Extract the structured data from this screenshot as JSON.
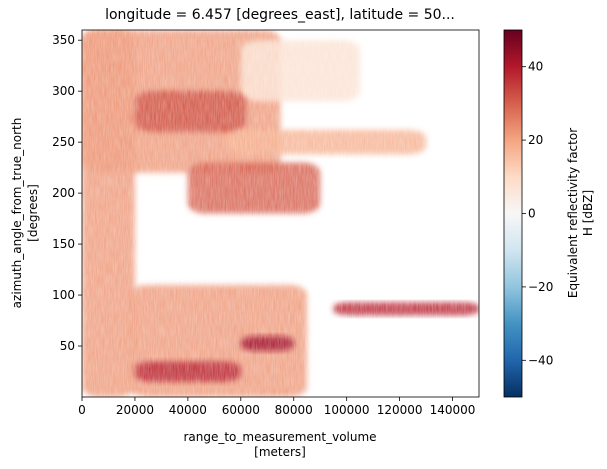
{
  "chart_data": {
    "type": "heatmap",
    "title": "longitude = 6.457 [degrees_east], latitude = 50...",
    "xlabel_lines": [
      "range_to_measurement_volume",
      "[meters]"
    ],
    "ylabel_lines": [
      "azimuth_angle_from_true_north",
      "[degrees]"
    ],
    "xlim": [
      0,
      150000
    ],
    "ylim": [
      0,
      360
    ],
    "x_ticks": [
      0,
      20000,
      40000,
      60000,
      80000,
      100000,
      120000,
      140000
    ],
    "y_ticks": [
      50,
      100,
      150,
      200,
      250,
      300,
      350
    ],
    "colorbar": {
      "label_lines": [
        "Equivalent reflectivity factor",
        "H [dBZ]"
      ],
      "range": [
        -50,
        50
      ],
      "ticks": [
        -40,
        -20,
        0,
        20,
        40
      ],
      "colormap": "RdBu_r",
      "stops": [
        "#053061",
        "#2166ac",
        "#4393c3",
        "#92c5de",
        "#d1e5f0",
        "#f7f7f7",
        "#fddbc7",
        "#f4a582",
        "#d6604d",
        "#b2182b",
        "#67001f"
      ]
    },
    "echo_regions": [
      {
        "r_range": [
          0,
          75000
        ],
        "az_range": [
          220,
          360
        ],
        "dbz": 22
      },
      {
        "r_range": [
          0,
          20000
        ],
        "az_range": [
          0,
          360
        ],
        "dbz": 22
      },
      {
        "r_range": [
          60000,
          105000
        ],
        "az_range": [
          290,
          350
        ],
        "dbz": 8
      },
      {
        "r_range": [
          20000,
          62000
        ],
        "az_range": [
          260,
          300
        ],
        "dbz": 32
      },
      {
        "r_range": [
          55000,
          130000
        ],
        "az_range": [
          238,
          262
        ],
        "dbz": 18
      },
      {
        "r_range": [
          40000,
          90000
        ],
        "az_range": [
          180,
          230
        ],
        "dbz": 30
      },
      {
        "r_range": [
          18000,
          85000
        ],
        "az_range": [
          0,
          110
        ],
        "dbz": 22
      },
      {
        "r_range": [
          60000,
          80000
        ],
        "az_range": [
          45,
          60
        ],
        "dbz": 42
      },
      {
        "r_range": [
          20000,
          60000
        ],
        "az_range": [
          15,
          35
        ],
        "dbz": 38
      },
      {
        "r_range": [
          95000,
          150000
        ],
        "az_range": [
          80,
          93
        ],
        "dbz": 38
      }
    ]
  }
}
